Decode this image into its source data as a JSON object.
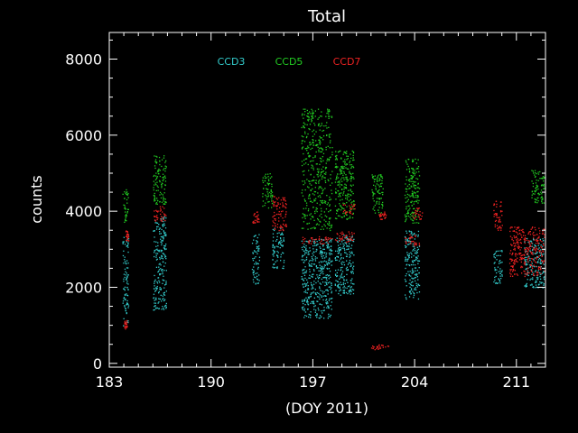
{
  "chart_data": {
    "type": "scatter",
    "title": "Total",
    "xlabel": "(DOY 2011)",
    "ylabel": "counts",
    "xlim": [
      183,
      213
    ],
    "ylim": [
      -100,
      8700
    ],
    "xticks": [
      183,
      190,
      197,
      204,
      211
    ],
    "xtick_labels": [
      "183",
      "190",
      "197",
      "204",
      "211"
    ],
    "yticks": [
      0,
      2000,
      4000,
      6000,
      8000
    ],
    "ytick_labels": [
      "0",
      "2000",
      "4000",
      "6000",
      "8000"
    ],
    "grid": false,
    "legend_position": "top-left-inside",
    "series": [
      {
        "name": "CCD3",
        "color": "#33cccc",
        "clusters": [
          {
            "x": [
              183.9,
              184.3
            ],
            "y": [
              1000,
              3400
            ]
          },
          {
            "x": [
              186.0,
              186.9
            ],
            "y": [
              1400,
              3900
            ]
          },
          {
            "x": [
              192.8,
              193.3
            ],
            "y": [
              2100,
              3400
            ]
          },
          {
            "x": [
              194.2,
              195.0
            ],
            "y": [
              2500,
              3600
            ]
          },
          {
            "x": [
              196.2,
              198.3
            ],
            "y": [
              1200,
              3300
            ]
          },
          {
            "x": [
              198.5,
              199.8
            ],
            "y": [
              1800,
              3400
            ]
          },
          {
            "x": [
              203.3,
              204.3
            ],
            "y": [
              1700,
              3500
            ]
          },
          {
            "x": [
              211.5,
              212.9
            ],
            "y": [
              2000,
              3300
            ]
          },
          {
            "x": [
              209.4,
              210.0
            ],
            "y": [
              2100,
              3000
            ]
          }
        ]
      },
      {
        "name": "CCD5",
        "color": "#22cc22",
        "clusters": [
          {
            "x": [
              183.9,
              184.3
            ],
            "y": [
              3700,
              4600
            ]
          },
          {
            "x": [
              186.0,
              186.9
            ],
            "y": [
              4200,
              5500
            ]
          },
          {
            "x": [
              193.5,
              194.2
            ],
            "y": [
              4100,
              5000
            ]
          },
          {
            "x": [
              196.2,
              198.3
            ],
            "y": [
              3500,
              6700
            ]
          },
          {
            "x": [
              198.5,
              199.8
            ],
            "y": [
              3800,
              5600
            ]
          },
          {
            "x": [
              203.3,
              204.3
            ],
            "y": [
              3700,
              5400
            ]
          },
          {
            "x": [
              212.0,
              212.9
            ],
            "y": [
              4200,
              5100
            ]
          },
          {
            "x": [
              201.0,
              201.8
            ],
            "y": [
              3900,
              5000
            ]
          }
        ]
      },
      {
        "name": "CCD7",
        "color": "#ee2222",
        "clusters": [
          {
            "x": [
              184.0,
              184.2
            ],
            "y": [
              900,
              1150
            ]
          },
          {
            "x": [
              184.1,
              184.3
            ],
            "y": [
              3200,
              3500
            ]
          },
          {
            "x": [
              186.0,
              186.9
            ],
            "y": [
              3750,
              4150
            ]
          },
          {
            "x": [
              192.8,
              193.3
            ],
            "y": [
              3700,
              4000
            ]
          },
          {
            "x": [
              194.2,
              195.2
            ],
            "y": [
              3500,
              4400
            ]
          },
          {
            "x": [
              196.2,
              198.3
            ],
            "y": [
              3150,
              3350
            ]
          },
          {
            "x": [
              198.5,
              199.8
            ],
            "y": [
              3200,
              3500
            ]
          },
          {
            "x": [
              199.0,
              199.9
            ],
            "y": [
              3900,
              4200
            ]
          },
          {
            "x": [
              201.0,
              202.2
            ],
            "y": [
              350,
              500
            ]
          },
          {
            "x": [
              201.5,
              202.0
            ],
            "y": [
              3800,
              4000
            ]
          },
          {
            "x": [
              203.3,
              204.3
            ],
            "y": [
              3100,
              3400
            ]
          },
          {
            "x": [
              203.8,
              204.5
            ],
            "y": [
              3800,
              4100
            ]
          },
          {
            "x": [
              209.4,
              210.0
            ],
            "y": [
              3500,
              4300
            ]
          },
          {
            "x": [
              210.5,
              212.9
            ],
            "y": [
              2300,
              3600
            ]
          }
        ]
      }
    ]
  }
}
